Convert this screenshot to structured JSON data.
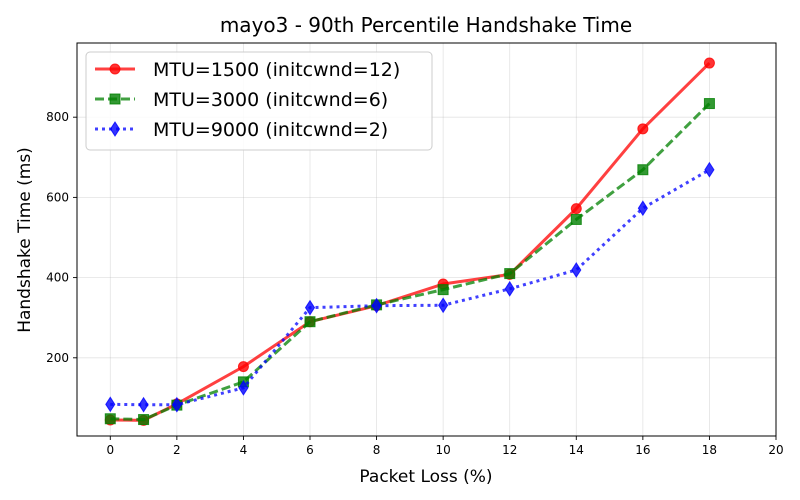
{
  "chart_data": {
    "type": "line",
    "title": "mayo3 - 90th Percentile Handshake Time",
    "xlabel": "Packet Loss (%)",
    "ylabel": "Handshake Time (ms)",
    "xlim": [
      -1,
      20
    ],
    "ylim": [
      5,
      985
    ],
    "xticks": [
      0,
      2,
      4,
      6,
      8,
      10,
      12,
      14,
      16,
      18,
      20
    ],
    "yticks": [
      200,
      400,
      600,
      800
    ],
    "grid": true,
    "legend_position": "upper-left",
    "series": [
      {
        "name": "MTU=1500 (initcwnd=12)",
        "color": "#ff0000",
        "line_style": "solid",
        "marker": "circle",
        "x": [
          0,
          1,
          2,
          4,
          6,
          8,
          10,
          12,
          14,
          16,
          18
        ],
        "y": [
          45,
          44,
          85,
          178,
          290,
          330,
          384,
          408,
          572,
          771,
          935
        ]
      },
      {
        "name": "MTU=3000 (initcwnd=6)",
        "color": "#008000",
        "line_style": "dashed",
        "marker": "square",
        "x": [
          0,
          1,
          2,
          4,
          6,
          8,
          10,
          12,
          14,
          16,
          18
        ],
        "y": [
          48,
          46,
          82,
          140,
          290,
          332,
          370,
          410,
          545,
          669,
          834
        ]
      },
      {
        "name": "MTU=9000 (initcwnd=2)",
        "color": "#0000ff",
        "line_style": "dotted",
        "marker": "diamond",
        "x": [
          0,
          1,
          2,
          4,
          6,
          8,
          10,
          12,
          14,
          16,
          18
        ],
        "y": [
          84,
          83,
          83,
          125,
          325,
          330,
          331,
          372,
          419,
          573,
          669
        ]
      }
    ]
  }
}
